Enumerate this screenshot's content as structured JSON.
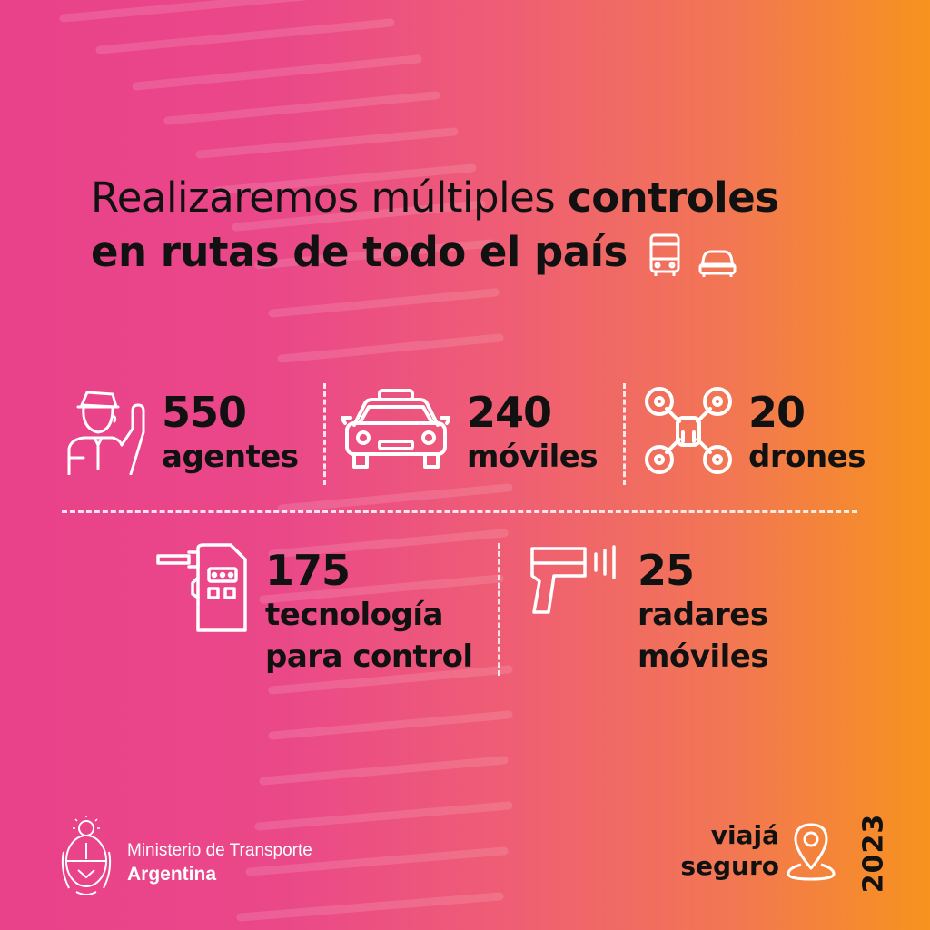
{
  "headline": {
    "line1_light": "Realizaremos múltiples ",
    "line1_bold": "controles",
    "line2_bold": "en rutas de todo el país"
  },
  "stats": [
    {
      "number": "550",
      "label": "agentes",
      "icon": "traffic-agent-icon"
    },
    {
      "number": "240",
      "label": "móviles",
      "icon": "patrol-car-icon"
    },
    {
      "number": "20",
      "label": "drones",
      "icon": "drone-icon"
    },
    {
      "number": "175",
      "label_lines": [
        "tecnología",
        "para control"
      ],
      "icon": "breathalyzer-icon"
    },
    {
      "number": "25",
      "label_lines": [
        "radares",
        "móviles"
      ],
      "icon": "speed-radar-gun-icon"
    }
  ],
  "footer": {
    "ministry_line1": "Ministerio de Transporte",
    "ministry_line2": "Argentina",
    "campaign_line1": "viajá",
    "campaign_line2": "seguro",
    "year": "2023"
  },
  "colors": {
    "gradient_start": "#e9418a",
    "gradient_end": "#f7931e",
    "text": "#111111",
    "icon_stroke": "#ffffff"
  }
}
